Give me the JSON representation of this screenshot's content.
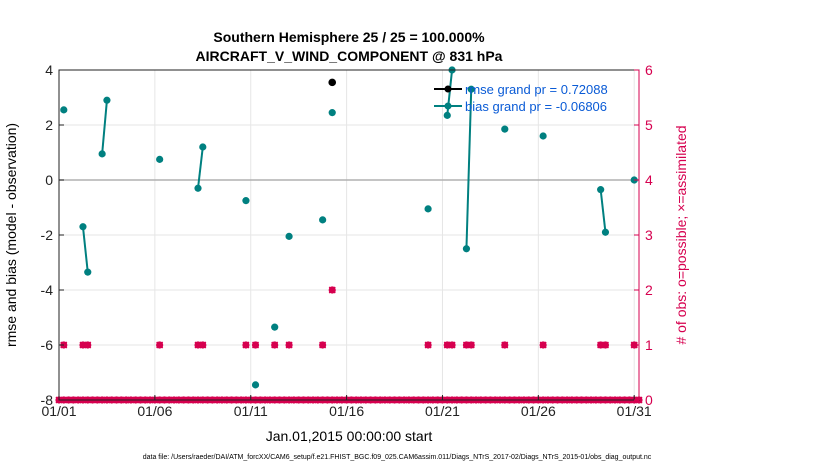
{
  "chart_data": {
    "type": "scatter",
    "title": "Southern Hemisphere 25 / 25 = 100.000%",
    "subtitle": "AIRCRAFT_V_WIND_COMPONENT @ 831 hPa",
    "xlabel": "Jan.01,2015 00:00:00 start",
    "ylabel_left": "rmse and bias (model - observation)",
    "ylabel_right": "# of obs: o=possible; ×=assimilated",
    "footnote": "data file: /Users/raeder/DAI/ATM_forcXX/CAM6_setup/f.e21.FHIST_BGC.f09_025.CAM6assim.011/Diags_NTrS_2017-02/Diags_NTrS_2015-01/obs_diag_output.nc",
    "x_tick_labels": [
      "01/01",
      "01/06",
      "01/11",
      "01/16",
      "01/21",
      "01/26",
      "01/31"
    ],
    "x_tick_days": [
      1,
      6,
      11,
      16,
      21,
      26,
      31
    ],
    "xlim": [
      1,
      31.25
    ],
    "ylim_left": [
      -8,
      4
    ],
    "yticks_left": [
      "-8",
      "-6",
      "-4",
      "-2",
      "0",
      "2",
      "4"
    ],
    "ylim_right": [
      0,
      6
    ],
    "yticks_right": [
      "0",
      "1",
      "2",
      "3",
      "4",
      "5",
      "6"
    ],
    "grid": true,
    "legend_position": "top-right",
    "colors": {
      "rmse": "#000000",
      "bias": "#008080",
      "obs": "#d6004f",
      "zero_line": "#b0b0b0",
      "legend_text": "#0a5bd6"
    },
    "series": [
      {
        "name": "rmse grand pr = 0.72088",
        "kind": "rmse",
        "points": [
          [
            15.25,
            3.55
          ]
        ]
      },
      {
        "name": "bias grand pr = -0.06806",
        "kind": "bias",
        "segments": [
          [
            [
              1.25,
              2.55
            ]
          ],
          [
            [
              2.25,
              -1.7
            ],
            [
              2.5,
              -3.35
            ]
          ],
          [
            [
              3.25,
              0.95
            ],
            [
              3.5,
              2.9
            ]
          ],
          [
            [
              6.25,
              0.75
            ]
          ],
          [
            [
              8.25,
              -0.3
            ],
            [
              8.5,
              1.2
            ]
          ],
          [
            [
              10.75,
              -0.75
            ]
          ],
          [
            [
              11.25,
              -7.45
            ]
          ],
          [
            [
              12.25,
              -5.35
            ]
          ],
          [
            [
              13.0,
              -2.05
            ]
          ],
          [
            [
              14.75,
              -1.45
            ]
          ],
          [
            [
              15.25,
              2.45
            ]
          ],
          [
            [
              20.25,
              -1.05
            ]
          ],
          [
            [
              21.25,
              2.35
            ],
            [
              21.5,
              4.0
            ]
          ],
          [
            [
              22.25,
              -2.5
            ],
            [
              22.5,
              3.3
            ]
          ],
          [
            [
              24.25,
              1.85
            ]
          ],
          [
            [
              26.25,
              1.6
            ]
          ],
          [
            [
              29.25,
              -0.35
            ],
            [
              29.5,
              -1.9
            ]
          ],
          [
            [
              31.0,
              0.0
            ]
          ]
        ]
      },
      {
        "name": "obs possible",
        "kind": "obs",
        "points_days": [
          1.25,
          2.25,
          2.5,
          6.25,
          8.25,
          8.5,
          10.75,
          11.25,
          12.25,
          13.0,
          14.75,
          20.25,
          21.25,
          21.5,
          22.25,
          22.5,
          24.25,
          26.25,
          29.25,
          29.5,
          31.0
        ],
        "value": 1,
        "extra_points": [
          [
            15.25,
            2
          ]
        ]
      }
    ],
    "legend": [
      {
        "label": "rmse grand pr = 0.72088",
        "kind": "rmse"
      },
      {
        "label": "bias grand pr = -0.06806",
        "kind": "bias"
      }
    ]
  }
}
